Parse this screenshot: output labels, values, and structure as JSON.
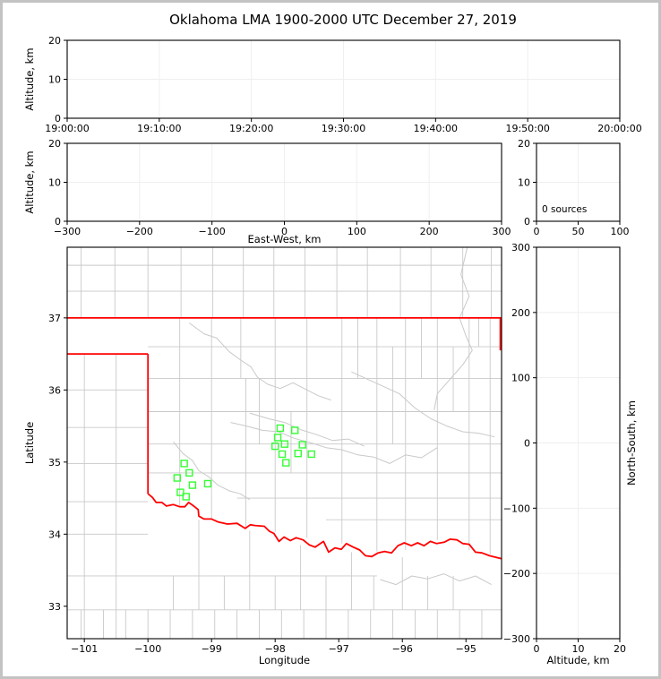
{
  "title": "Oklahoma LMA 1900-2000 UTC December 27, 2019",
  "colors": {
    "state_border": "#ff0000",
    "county_line": "#c9c9c9",
    "river": "#c9c9c9",
    "source_marker": "#33ff33",
    "grid": "#efefef",
    "axis": "#000000",
    "frame": "#c3c3c3",
    "background": "#ffffff"
  },
  "marker": {
    "shape": "square",
    "size": 7
  },
  "chart_data": [
    {
      "id": "time_height",
      "type": "scatter",
      "xlabel": "",
      "ylabel": "Altitude, km",
      "xlim": [
        0,
        6
      ],
      "xticks": [
        0,
        1,
        2,
        3,
        4,
        5,
        6
      ],
      "xtick_labels": [
        "19:00:00",
        "19:10:00",
        "19:20:00",
        "19:30:00",
        "19:40:00",
        "19:50:00",
        "20:00:00"
      ],
      "ylim": [
        0,
        20
      ],
      "yticks": [
        0,
        10,
        20
      ],
      "grid": true,
      "points": []
    },
    {
      "id": "ew_height",
      "type": "scatter",
      "xlabel": "East-West, km",
      "ylabel": "Altitude, km",
      "xlim": [
        -300,
        300
      ],
      "xticks": [
        -300,
        -200,
        -100,
        0,
        100,
        200,
        300
      ],
      "ylim": [
        0,
        20
      ],
      "yticks": [
        0,
        10,
        20
      ],
      "grid": true,
      "points": []
    },
    {
      "id": "alt_histogram",
      "type": "scatter",
      "xlabel": "",
      "ylabel": "",
      "xlim": [
        0,
        100
      ],
      "xticks": [
        0,
        50,
        100
      ],
      "ylim": [
        0,
        20
      ],
      "yticks": [
        0,
        10,
        20
      ],
      "grid": true,
      "annotation": "0 sources",
      "points": []
    },
    {
      "id": "plan_view",
      "type": "scatter",
      "xlabel": "Longitude",
      "ylabel": "Latitude",
      "xlim": [
        -101.27,
        -94.44
      ],
      "xticks": [
        -101,
        -100,
        -99,
        -98,
        -97,
        -96,
        -95
      ],
      "ylim": [
        32.55,
        37.98
      ],
      "yticks": [
        33,
        34,
        35,
        36,
        37
      ],
      "grid": false,
      "points": [
        [
          -97.92,
          35.47
        ],
        [
          -97.69,
          35.44
        ],
        [
          -97.96,
          35.34
        ],
        [
          -97.85,
          35.25
        ],
        [
          -98.0,
          35.22
        ],
        [
          -97.57,
          35.24
        ],
        [
          -97.89,
          35.11
        ],
        [
          -97.64,
          35.12
        ],
        [
          -97.43,
          35.11
        ],
        [
          -97.83,
          34.99
        ],
        [
          -99.43,
          34.98
        ],
        [
          -99.35,
          34.85
        ],
        [
          -99.54,
          34.78
        ],
        [
          -99.3,
          34.68
        ],
        [
          -99.06,
          34.7
        ],
        [
          -99.49,
          34.58
        ],
        [
          -99.4,
          34.52
        ]
      ]
    },
    {
      "id": "ns_height",
      "type": "scatter",
      "xlabel": "Altitude, km",
      "ylabel_right": "North-South, km",
      "xlim": [
        0,
        20
      ],
      "xticks": [
        0,
        10,
        20
      ],
      "ylim": [
        -300,
        300
      ],
      "yticks": [
        -300,
        -200,
        -100,
        0,
        100,
        200,
        300
      ],
      "grid": true,
      "points": []
    }
  ],
  "map": {
    "state_border": [
      [
        [
          -101.27,
          37.0
        ],
        [
          -94.44,
          37.0
        ]
      ],
      [
        [
          -94.46,
          37.0
        ],
        [
          -94.46,
          36.55
        ]
      ],
      [
        [
          -101.27,
          36.5
        ],
        [
          -100.0,
          36.5
        ]
      ],
      [
        [
          -100.0,
          36.5
        ],
        [
          -100.0,
          34.56
        ]
      ],
      [
        [
          -100.0,
          34.56
        ],
        [
          -99.93,
          34.51
        ],
        [
          -99.87,
          34.44
        ],
        [
          -99.78,
          34.44
        ],
        [
          -99.71,
          34.39
        ],
        [
          -99.6,
          34.41
        ],
        [
          -99.5,
          34.38
        ],
        [
          -99.42,
          34.38
        ],
        [
          -99.36,
          34.44
        ],
        [
          -99.28,
          34.39
        ],
        [
          -99.21,
          34.34
        ],
        [
          -99.2,
          34.25
        ],
        [
          -99.12,
          34.21
        ],
        [
          -99.0,
          34.21
        ],
        [
          -98.9,
          34.17
        ],
        [
          -98.75,
          34.14
        ],
        [
          -98.6,
          34.15
        ],
        [
          -98.47,
          34.08
        ],
        [
          -98.39,
          34.13
        ],
        [
          -98.32,
          34.12
        ],
        [
          -98.17,
          34.11
        ],
        [
          -98.09,
          34.04
        ],
        [
          -98.02,
          34.01
        ],
        [
          -97.94,
          33.9
        ],
        [
          -97.86,
          33.96
        ],
        [
          -97.76,
          33.91
        ],
        [
          -97.67,
          33.95
        ],
        [
          -97.56,
          33.92
        ],
        [
          -97.46,
          33.85
        ],
        [
          -97.37,
          33.82
        ],
        [
          -97.24,
          33.9
        ],
        [
          -97.16,
          33.75
        ],
        [
          -97.06,
          33.81
        ],
        [
          -96.96,
          33.79
        ],
        [
          -96.88,
          33.87
        ],
        [
          -96.77,
          33.82
        ],
        [
          -96.67,
          33.78
        ],
        [
          -96.58,
          33.7
        ],
        [
          -96.48,
          33.69
        ],
        [
          -96.38,
          33.74
        ],
        [
          -96.28,
          33.76
        ],
        [
          -96.17,
          33.74
        ],
        [
          -96.07,
          33.84
        ],
        [
          -95.97,
          33.88
        ],
        [
          -95.86,
          33.84
        ],
        [
          -95.76,
          33.88
        ],
        [
          -95.66,
          33.84
        ],
        [
          -95.56,
          33.9
        ],
        [
          -95.46,
          33.87
        ],
        [
          -95.34,
          33.89
        ],
        [
          -95.25,
          33.93
        ],
        [
          -95.14,
          33.92
        ],
        [
          -95.05,
          33.87
        ],
        [
          -94.95,
          33.86
        ],
        [
          -94.85,
          33.75
        ],
        [
          -94.75,
          33.74
        ],
        [
          -94.63,
          33.7
        ],
        [
          -94.44,
          33.66
        ]
      ]
    ],
    "county_vlines": [
      [
        -101.05,
        37.98,
        37.0
      ],
      [
        -100.52,
        37.98,
        37.0
      ],
      [
        -100.0,
        37.98,
        37.0
      ],
      [
        -99.48,
        37.98,
        37.0
      ],
      [
        -98.98,
        37.98,
        37.0
      ],
      [
        -98.5,
        37.98,
        37.0
      ],
      [
        -98.02,
        37.98,
        37.0
      ],
      [
        -97.53,
        37.98,
        37.0
      ],
      [
        -97.03,
        37.98,
        37.0
      ],
      [
        -96.55,
        37.98,
        37.0
      ],
      [
        -96.03,
        37.98,
        37.0
      ],
      [
        -95.55,
        37.98,
        37.0
      ],
      [
        -95.05,
        37.98,
        37.0
      ],
      [
        -94.6,
        37.98,
        37.0
      ],
      [
        -101.0,
        36.5,
        32.55
      ],
      [
        -100.5,
        36.5,
        32.55
      ],
      [
        -99.5,
        37.0,
        34.4
      ],
      [
        -99.0,
        37.0,
        34.22
      ],
      [
        -98.54,
        37.0,
        36.16
      ],
      [
        -98.46,
        36.16,
        34.1
      ],
      [
        -98.0,
        37.0,
        34.03
      ],
      [
        -97.5,
        37.0,
        33.95
      ],
      [
        -96.95,
        37.0,
        33.87
      ],
      [
        -96.4,
        37.0,
        33.76
      ],
      [
        -95.95,
        37.0,
        33.78
      ],
      [
        -95.45,
        37.0,
        33.92
      ],
      [
        -94.95,
        37.0,
        33.78
      ],
      [
        -94.62,
        37.0,
        33.72
      ],
      [
        -96.7,
        37.0,
        36.16
      ],
      [
        -96.15,
        36.6,
        35.25
      ],
      [
        -95.7,
        37.0,
        36.16
      ],
      [
        -95.2,
        36.6,
        35.7
      ],
      [
        -94.8,
        37.0,
        36.6
      ],
      [
        -97.75,
        35.7,
        34.85
      ],
      [
        -98.25,
        36.16,
        35.25
      ],
      [
        -99.6,
        33.42,
        32.95
      ],
      [
        -99.2,
        34.2,
        32.95
      ],
      [
        -98.8,
        33.42,
        32.95
      ],
      [
        -98.4,
        34.05,
        32.95
      ],
      [
        -98.0,
        33.42,
        32.95
      ],
      [
        -97.6,
        33.85,
        32.95
      ],
      [
        -97.2,
        33.42,
        32.95
      ],
      [
        -96.8,
        33.75,
        32.95
      ],
      [
        -96.45,
        33.42,
        32.95
      ],
      [
        -96.0,
        33.68,
        32.95
      ],
      [
        -95.6,
        33.42,
        32.95
      ],
      [
        -95.2,
        33.42,
        32.95
      ],
      [
        -101.05,
        32.95,
        32.55
      ],
      [
        -100.7,
        32.95,
        32.55
      ],
      [
        -100.35,
        32.95,
        32.55
      ],
      [
        -100.0,
        32.95,
        32.55
      ],
      [
        -99.65,
        32.95,
        32.55
      ],
      [
        -99.3,
        32.95,
        32.55
      ],
      [
        -98.95,
        32.95,
        32.55
      ],
      [
        -98.6,
        32.95,
        32.55
      ],
      [
        -98.25,
        32.95,
        32.55
      ],
      [
        -97.9,
        32.95,
        32.55
      ],
      [
        -97.55,
        32.95,
        32.55
      ],
      [
        -97.2,
        32.95,
        32.55
      ],
      [
        -96.85,
        32.95,
        32.55
      ],
      [
        -96.5,
        32.95,
        32.55
      ],
      [
        -96.15,
        32.95,
        32.55
      ],
      [
        -95.8,
        32.95,
        32.55
      ],
      [
        -95.45,
        32.95,
        32.55
      ],
      [
        -95.1,
        32.95,
        32.55
      ],
      [
        -94.75,
        32.95,
        32.55
      ]
    ],
    "county_hlines": [
      [
        37.37,
        -101.27,
        -94.44
      ],
      [
        37.73,
        -101.27,
        -94.44
      ],
      [
        36.0,
        -101.27,
        -100.0
      ],
      [
        35.48,
        -101.27,
        -100.0
      ],
      [
        34.98,
        -101.27,
        -100.0
      ],
      [
        34.45,
        -101.27,
        -100.0
      ],
      [
        34.0,
        -101.27,
        -100.0
      ],
      [
        36.6,
        -100.0,
        -94.44
      ],
      [
        36.16,
        -100.0,
        -94.44
      ],
      [
        35.7,
        -100.0,
        -94.44
      ],
      [
        35.25,
        -100.0,
        -94.44
      ],
      [
        34.85,
        -100.0,
        -94.44
      ],
      [
        34.5,
        -98.6,
        -94.44
      ],
      [
        34.2,
        -97.2,
        -94.44
      ],
      [
        33.42,
        -101.27,
        -96.4
      ],
      [
        32.95,
        -101.27,
        -94.44
      ]
    ],
    "rivers": [
      [
        [
          -99.35,
          36.93
        ],
        [
          -99.12,
          36.78
        ],
        [
          -98.92,
          36.72
        ],
        [
          -98.72,
          36.53
        ],
        [
          -98.55,
          36.42
        ],
        [
          -98.38,
          36.32
        ],
        [
          -98.28,
          36.18
        ],
        [
          -98.12,
          36.08
        ],
        [
          -97.92,
          36.02
        ],
        [
          -97.72,
          36.1
        ],
        [
          -97.5,
          36.0
        ],
        [
          -97.32,
          35.92
        ],
        [
          -97.12,
          35.86
        ]
      ],
      [
        [
          -98.7,
          35.55
        ],
        [
          -98.45,
          35.5
        ],
        [
          -98.2,
          35.44
        ],
        [
          -97.95,
          35.42
        ],
        [
          -97.7,
          35.33
        ],
        [
          -97.45,
          35.27
        ],
        [
          -97.2,
          35.2
        ],
        [
          -96.95,
          35.17
        ],
        [
          -96.7,
          35.1
        ],
        [
          -96.45,
          35.07
        ],
        [
          -96.2,
          34.98
        ],
        [
          -95.95,
          35.1
        ],
        [
          -95.7,
          35.06
        ],
        [
          -95.45,
          35.2
        ]
      ],
      [
        [
          -99.6,
          35.28
        ],
        [
          -99.45,
          35.12
        ],
        [
          -99.3,
          35.02
        ],
        [
          -99.2,
          34.88
        ],
        [
          -99.05,
          34.8
        ],
        [
          -98.9,
          34.68
        ],
        [
          -98.72,
          34.6
        ],
        [
          -98.55,
          34.56
        ],
        [
          -98.4,
          34.48
        ]
      ],
      [
        [
          -98.4,
          35.68
        ],
        [
          -98.1,
          35.6
        ],
        [
          -97.85,
          35.55
        ],
        [
          -97.6,
          35.45
        ],
        [
          -97.35,
          35.38
        ],
        [
          -97.1,
          35.3
        ],
        [
          -96.85,
          35.32
        ],
        [
          -96.6,
          35.22
        ]
      ],
      [
        [
          -94.98,
          37.98
        ],
        [
          -95.08,
          37.6
        ],
        [
          -94.95,
          37.3
        ],
        [
          -95.1,
          37.0
        ],
        [
          -95.0,
          36.75
        ],
        [
          -94.9,
          36.55
        ],
        [
          -95.05,
          36.35
        ],
        [
          -95.25,
          36.15
        ],
        [
          -95.45,
          35.95
        ],
        [
          -95.5,
          35.72
        ]
      ],
      [
        [
          -96.35,
          33.37
        ],
        [
          -96.1,
          33.3
        ],
        [
          -95.85,
          33.42
        ],
        [
          -95.6,
          33.38
        ],
        [
          -95.35,
          33.45
        ],
        [
          -95.1,
          33.35
        ],
        [
          -94.85,
          33.42
        ],
        [
          -94.6,
          33.3
        ]
      ],
      [
        [
          -96.8,
          36.25
        ],
        [
          -96.55,
          36.15
        ],
        [
          -96.3,
          36.05
        ],
        [
          -96.05,
          35.95
        ],
        [
          -95.8,
          35.75
        ],
        [
          -95.55,
          35.6
        ],
        [
          -95.3,
          35.5
        ],
        [
          -95.05,
          35.42
        ],
        [
          -94.8,
          35.4
        ],
        [
          -94.55,
          35.35
        ]
      ]
    ]
  }
}
